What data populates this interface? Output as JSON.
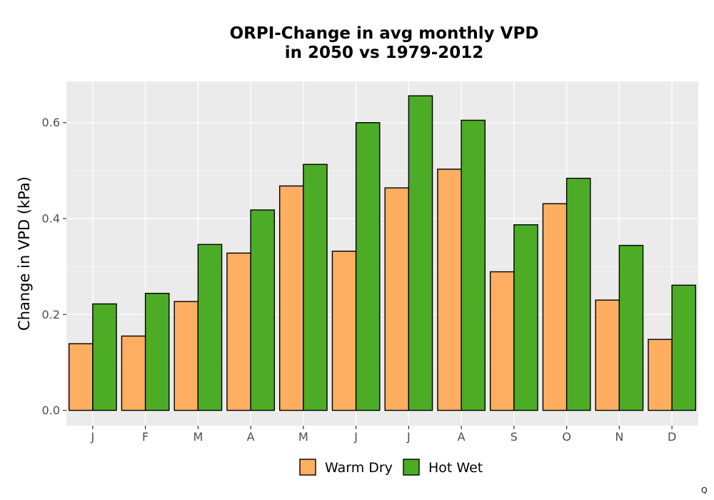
{
  "chart_data": {
    "type": "bar",
    "title_lines": [
      "ORPI-Change in avg monthly VPD",
      "in 2050 vs 1979-2012"
    ],
    "xlabel": "",
    "ylabel": "Change in VPD (kPa)",
    "categories": [
      "J",
      "F",
      "M",
      "A",
      "M",
      "J",
      "J",
      "A",
      "S",
      "O",
      "N",
      "D"
    ],
    "series": [
      {
        "name": "Warm Dry",
        "color": "#FDAE61",
        "values": [
          0.139,
          0.155,
          0.227,
          0.328,
          0.468,
          0.332,
          0.464,
          0.503,
          0.289,
          0.431,
          0.23,
          0.148
        ]
      },
      {
        "name": "Hot Wet",
        "color": "#4DAC26",
        "values": [
          0.222,
          0.244,
          0.346,
          0.418,
          0.513,
          0.6,
          0.656,
          0.605,
          0.387,
          0.484,
          0.344,
          0.261
        ]
      }
    ],
    "yticks": [
      0.0,
      0.2,
      0.4,
      0.6
    ],
    "ytick_labels": [
      "0.0",
      "0.2",
      "0.4",
      "0.6"
    ],
    "ylim": [
      -0.032,
      0.686
    ],
    "grid": true,
    "panel_background": "#EBEBEB",
    "legend_position": "bottom",
    "corner_mark": "Q"
  }
}
